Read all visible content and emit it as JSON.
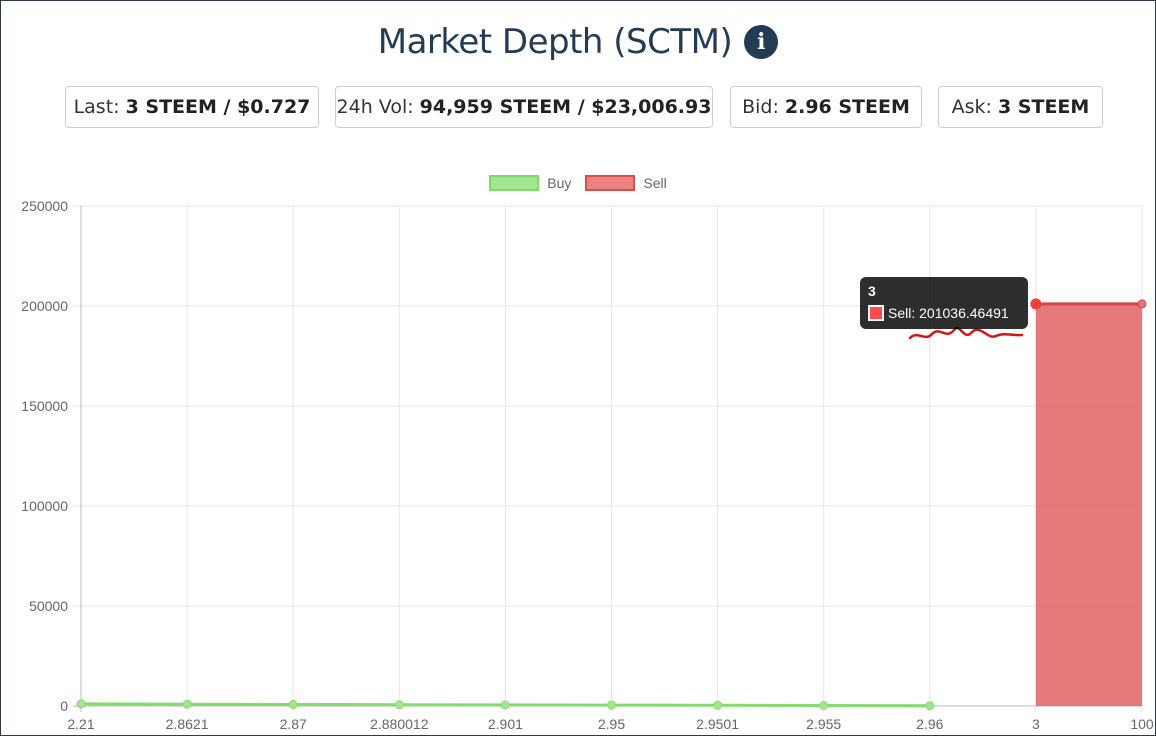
{
  "title": "Market Depth (SCTM)",
  "stats": [
    {
      "label": "Last:",
      "value": "3 STEEM / $0.727"
    },
    {
      "label": "24h Vol:",
      "value": "94,959 STEEM / $23,006.93"
    },
    {
      "label": "Bid:",
      "value": "2.96 STEEM"
    },
    {
      "label": "Ask:",
      "value": "3 STEEM"
    }
  ],
  "tooltip": {
    "title": "3",
    "series": "Sell",
    "value": "201036.46491"
  },
  "chart_data": {
    "type": "area",
    "categories": [
      "2.21",
      "2.8621",
      "2.87",
      "2.880012",
      "2.901",
      "2.95",
      "2.9501",
      "2.955",
      "2.96",
      "3",
      "100"
    ],
    "series": [
      {
        "name": "Buy",
        "color": "#90e07a",
        "values": [
          1050,
          900,
          750,
          650,
          550,
          450,
          350,
          250,
          150,
          null,
          null
        ]
      },
      {
        "name": "Sell",
        "color": "#e86b6b",
        "values": [
          null,
          null,
          null,
          null,
          null,
          null,
          null,
          null,
          null,
          201036.46491,
          201036.46491
        ]
      }
    ],
    "ylim": [
      0,
      250000
    ],
    "yticks": [
      "0",
      "50000",
      "100000",
      "150000",
      "200000",
      "250000"
    ],
    "grid": true,
    "legend": "top"
  },
  "colors": {
    "title": "#243b55",
    "buy": "#90e07a",
    "sell": "#e86b6b"
  }
}
